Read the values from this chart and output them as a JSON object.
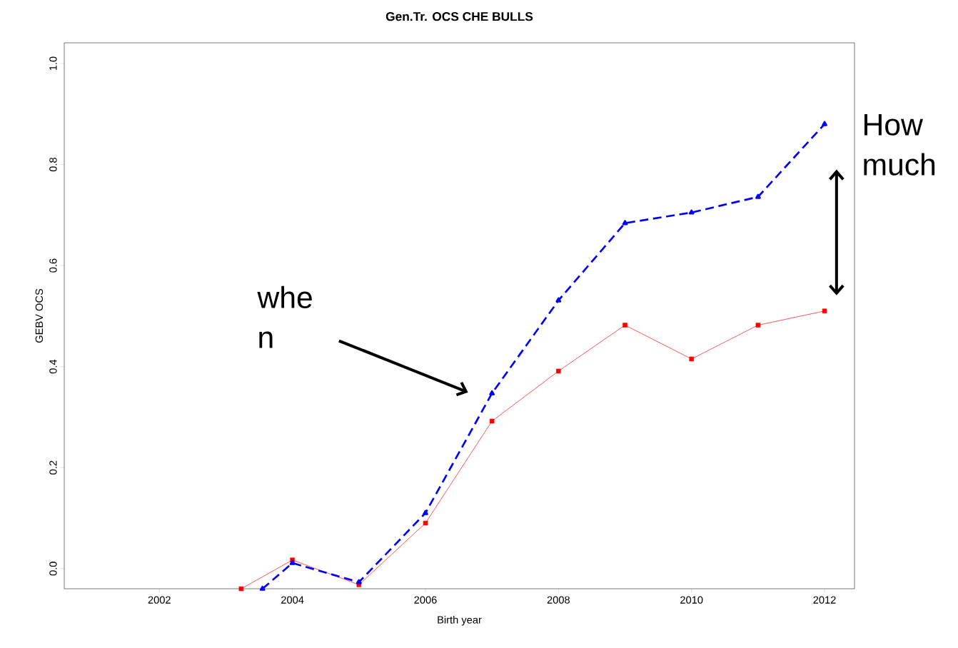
{
  "chart_data": {
    "type": "line",
    "title": "Gen.Tr. OCS CHE BULLS",
    "xlabel": "Birth year",
    "ylabel": "GEBV OCS",
    "xlim": [
      2000.57,
      2012.45
    ],
    "ylim": [
      -0.04,
      1.041
    ],
    "xticks": [
      2002,
      2004,
      2006,
      2008,
      2010,
      2012
    ],
    "yticks": [
      {
        "value": 0,
        "label": "0.0"
      },
      0.2,
      0.4,
      0.6,
      0.8,
      {
        "value": 1,
        "label": "1.0"
      }
    ],
    "series": [
      {
        "color": "#ff0000",
        "marker": "square",
        "line_style": "solid",
        "x": [
          2003.23,
          2004,
          2005,
          2006,
          2007,
          2008,
          2009,
          2010,
          2011,
          2012
        ],
        "values": [
          -0.04,
          0.017,
          -0.032,
          0.09,
          0.292,
          0.391,
          0.482,
          0.415,
          0.482,
          0.51
        ]
      },
      {
        "color": "#0000ff",
        "marker": "triangle",
        "line_style": "dashed",
        "x": [
          2003.55,
          2004,
          2005,
          2006,
          2007,
          2008,
          2009,
          2010,
          2011,
          2012
        ],
        "values": [
          -0.04,
          0.011,
          -0.027,
          0.11,
          0.347,
          0.531,
          0.684,
          0.705,
          0.736,
          0.88
        ]
      }
    ],
    "annotations": [
      "whe n",
      "How much"
    ]
  }
}
